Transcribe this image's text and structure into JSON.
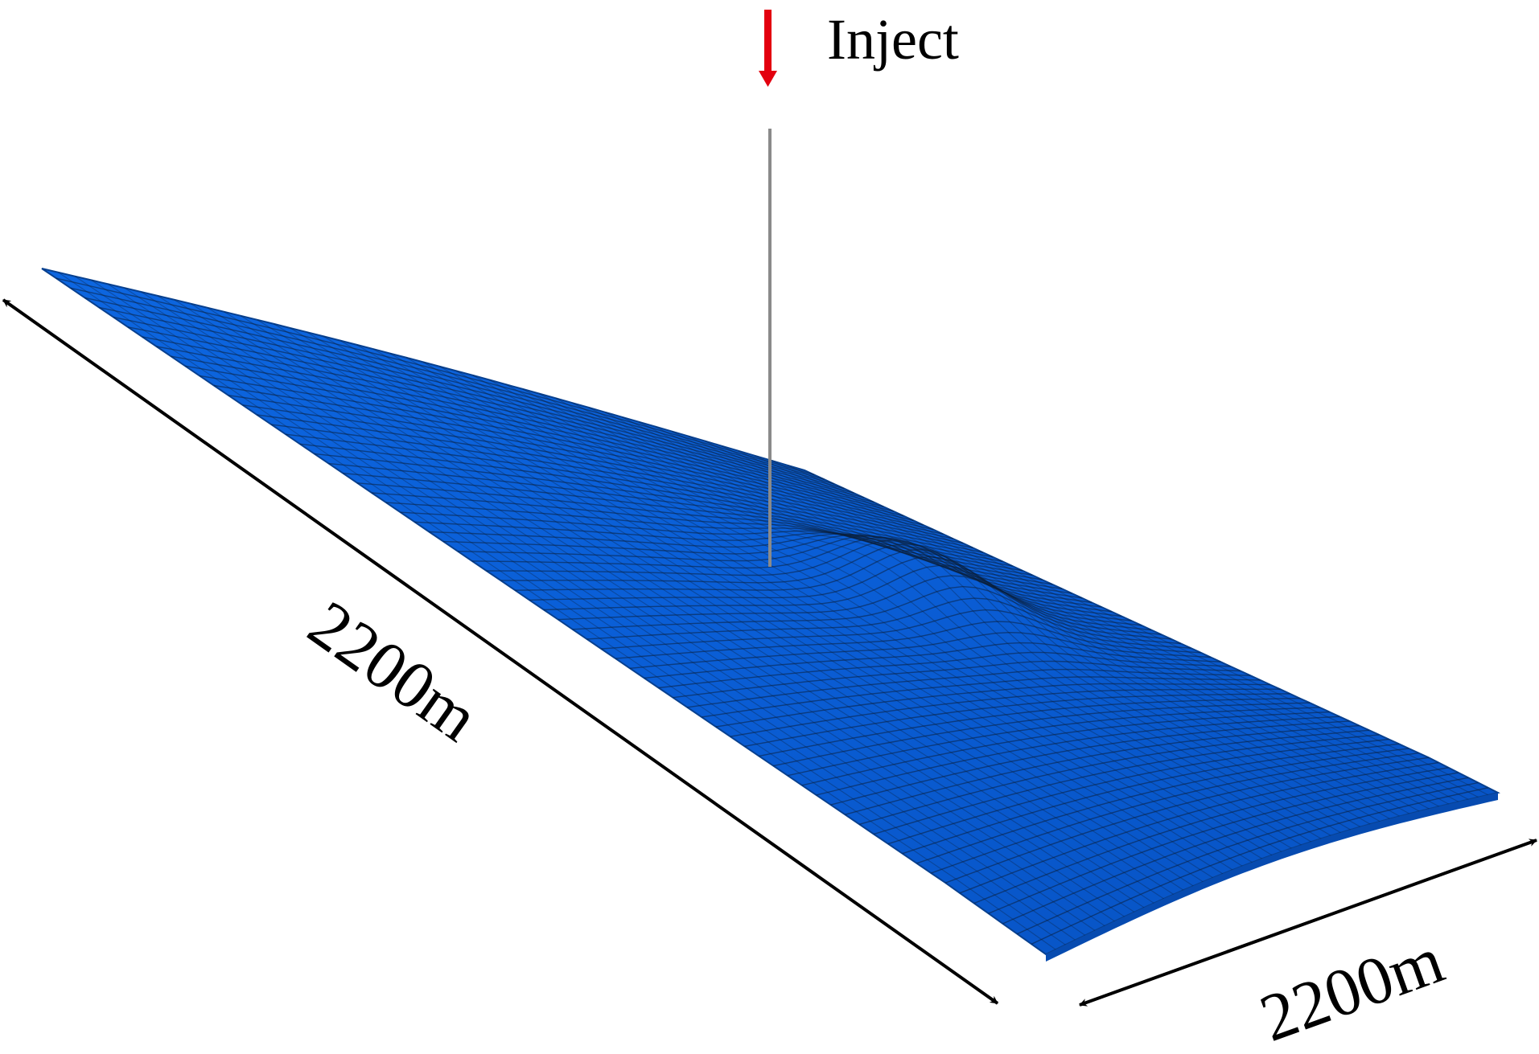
{
  "figure": {
    "inject_label": "Inject",
    "length_label": "2200m",
    "width_label": "2200m"
  },
  "colors": {
    "surface": "#0a5ed6",
    "surface_dark": "#08459e",
    "mesh_lines": "#0b1f3a",
    "injection_arrow": "#e3000f",
    "well_line": "#8a8a8a",
    "dimension_arrows": "#000000"
  }
}
